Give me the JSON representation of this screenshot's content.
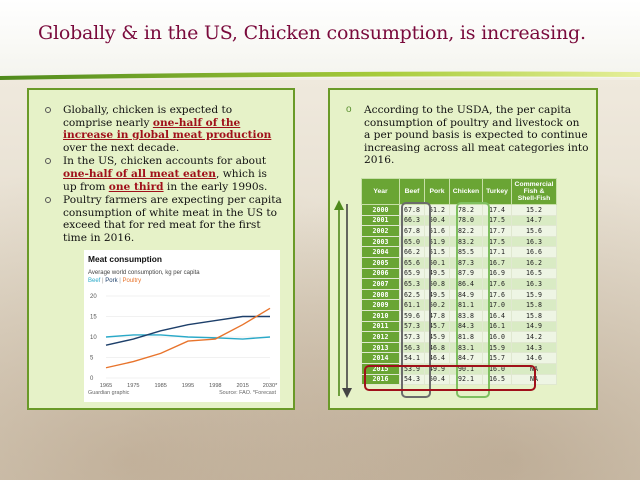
{
  "slide": {
    "title": "Globally & in the US, Chicken consumption, is increasing."
  },
  "left_panel": {
    "bullets": [
      {
        "pre": "Globally, chicken is expected to comprise nearly ",
        "hl": "one-half of the increase in global meat production",
        "post": " over the next decade."
      },
      {
        "pre": "In the US, chicken accounts for about ",
        "hl": "one-half of all meat eaten",
        "mid": ", which is up from ",
        "hl2": "one third",
        "post": " in the early 1990s."
      },
      {
        "pre": "Poultry farmers are expecting per capita consumption of white meat in the US to exceed that for red meat for the first time in 2016.",
        "hl": "",
        "post": ""
      }
    ]
  },
  "mini_chart": {
    "title": "Meat consumption",
    "subtitle": "Average world consumption, kg per capita",
    "legend": {
      "beef": "Beef",
      "pork": "Pork",
      "poultry": "Poultry",
      "sep": "|"
    },
    "footer_left": "Guardian graphic",
    "footer_right": "Source: FAO. *Forecast",
    "colors": {
      "beef": "#2aa9c8",
      "pork": "#1d3f6a",
      "poultry": "#e8742c"
    }
  },
  "chart_data": {
    "type": "line",
    "x": [
      "1965",
      "1975",
      "1985",
      "1995",
      "1998",
      "2015",
      "2030*"
    ],
    "series": [
      {
        "name": "Beef",
        "values": [
          10,
          10.5,
          10.5,
          10,
          9.8,
          9.5,
          10
        ]
      },
      {
        "name": "Pork",
        "values": [
          8,
          9.5,
          11.5,
          13,
          14,
          15,
          15
        ]
      },
      {
        "name": "Poultry",
        "values": [
          2.5,
          4,
          6,
          9,
          9.5,
          13,
          17
        ]
      }
    ],
    "yticks": [
      "0",
      "5",
      "10",
      "15",
      "20"
    ],
    "xticks": [
      "1965",
      "1975",
      "1985",
      "1995",
      "1998",
      "2015",
      "2030*"
    ],
    "ylim": [
      0,
      20
    ]
  },
  "right_panel": {
    "bullet_marker": "o",
    "text": "According to the USDA, the per capita consumption of poultry and livestock on a per pound basis is expected to continue increasing across all meat categories into 2016.",
    "table": {
      "headers": [
        "Year",
        "Beef",
        "Pork",
        "Chicken",
        "Turkey",
        "Commercial Fish & Shell-Fish"
      ],
      "rows": [
        [
          "2000",
          "67.8",
          "51.2",
          "78.2",
          "17.4",
          "15.2"
        ],
        [
          "2001",
          "66.3",
          "50.4",
          "78.0",
          "17.5",
          "14.7"
        ],
        [
          "2002",
          "67.8",
          "51.6",
          "82.2",
          "17.7",
          "15.6"
        ],
        [
          "2003",
          "65.0",
          "51.9",
          "83.2",
          "17.5",
          "16.3"
        ],
        [
          "2004",
          "66.2",
          "51.5",
          "85.5",
          "17.1",
          "16.6"
        ],
        [
          "2005",
          "65.6",
          "50.1",
          "87.3",
          "16.7",
          "16.2"
        ],
        [
          "2006",
          "65.9",
          "49.5",
          "87.9",
          "16.9",
          "16.5"
        ],
        [
          "2007",
          "65.3",
          "50.8",
          "86.4",
          "17.6",
          "16.3"
        ],
        [
          "2008",
          "62.5",
          "49.5",
          "84.9",
          "17.6",
          "15.9"
        ],
        [
          "2009",
          "61.1",
          "50.2",
          "81.1",
          "17.0",
          "15.8"
        ],
        [
          "2010",
          "59.6",
          "47.8",
          "83.8",
          "16.4",
          "15.8"
        ],
        [
          "2011",
          "57.3",
          "45.7",
          "84.3",
          "16.1",
          "14.9"
        ],
        [
          "2012",
          "57.3",
          "45.9",
          "81.8",
          "16.0",
          "14.2"
        ],
        [
          "2013",
          "56.3",
          "46.8",
          "83.1",
          "15.9",
          "14.3"
        ],
        [
          "2014",
          "54.1",
          "46.4",
          "84.7",
          "15.7",
          "14.6"
        ],
        [
          "2015",
          "53.9",
          "49.9",
          "90.1",
          "16.0",
          "NA"
        ],
        [
          "2016",
          "54.3",
          "50.4",
          "92.1",
          "16.5",
          "NA"
        ]
      ]
    }
  },
  "colors": {
    "title": "#7a0a3c",
    "panel_border": "#6a9a28",
    "panel_bg": "#e6f2c8",
    "table_header": "#6aa534",
    "highlight_red": "#a0101a"
  }
}
